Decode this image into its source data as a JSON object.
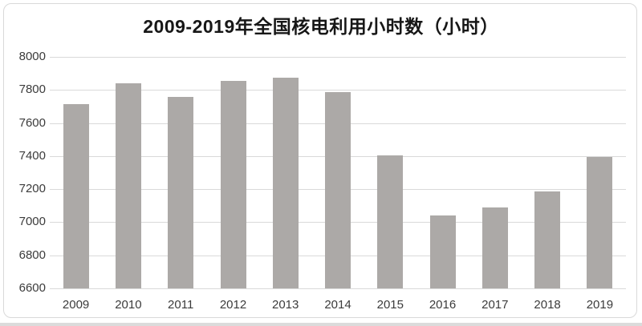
{
  "title": "2009-2019年全国核电利用小时数（小时）",
  "colors": {
    "bar": "#aca9a7",
    "gridline": "#d9d9d9",
    "frame_border": "#d9d9d9",
    "tick_text": "#3b3b3b",
    "title_text": "#171717",
    "bottom_strip": "#dbdbdb",
    "background": "#ffffff"
  },
  "chart_data": {
    "type": "bar",
    "title": "2009-2019年全国核电利用小时数（小时）",
    "categories": [
      "2009",
      "2010",
      "2011",
      "2012",
      "2013",
      "2014",
      "2015",
      "2016",
      "2017",
      "2018",
      "2019"
    ],
    "values": [
      7716,
      7840,
      7759,
      7855,
      7874,
      7787,
      7403,
      7042,
      7089,
      7184,
      7394
    ],
    "xlabel": "",
    "ylabel": "",
    "ylim": [
      6600,
      8000
    ],
    "ytick_step": 200,
    "yticks": [
      8000,
      7800,
      7600,
      7400,
      7200,
      7000,
      6800,
      6600
    ],
    "grid": true,
    "legend": false,
    "legend_position": "none",
    "bar_color": "#aca9a7"
  }
}
